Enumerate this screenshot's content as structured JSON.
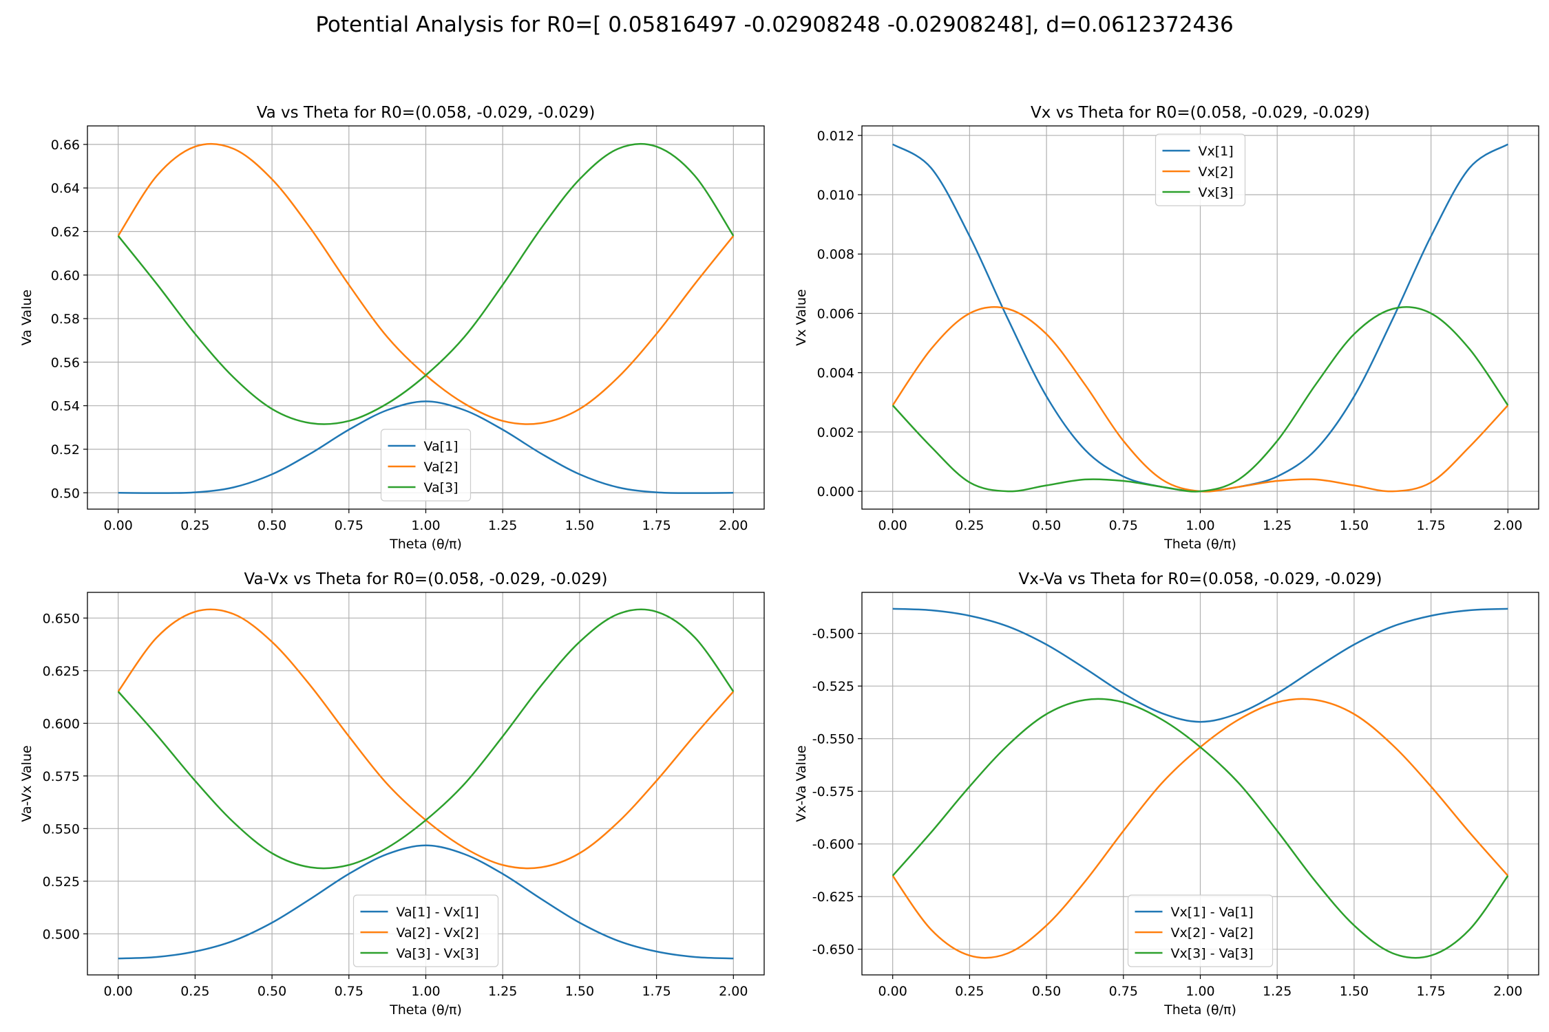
{
  "suptitle": "Potential Analysis for R0=[ 0.05816497 -0.02908248 -0.02908248], d=0.0612372436",
  "colors": {
    "series1": "#1f77b4",
    "series2": "#ff7f0e",
    "series3": "#2ca02c",
    "grid": "#b0b0b0"
  },
  "chart_data": [
    {
      "type": "line",
      "title": "Va vs Theta for R0=(0.058, -0.029, -0.029)",
      "xlabel": "Theta (θ/π)",
      "ylabel": "Va Value",
      "xlim": [
        -0.1,
        2.1
      ],
      "ylim": [
        0.4925,
        0.6685
      ],
      "xticks": [
        "0.00",
        "0.25",
        "0.50",
        "0.75",
        "1.00",
        "1.25",
        "1.50",
        "1.75",
        "2.00"
      ],
      "yticks": [
        "0.50",
        "0.52",
        "0.54",
        "0.56",
        "0.58",
        "0.60",
        "0.62",
        "0.64",
        "0.66"
      ],
      "grid": true,
      "legend": "lower center",
      "x": [
        0.0,
        0.125,
        0.25,
        0.375,
        0.5,
        0.625,
        0.75,
        0.875,
        1.0,
        1.125,
        1.25,
        1.375,
        1.5,
        1.625,
        1.75,
        1.875,
        2.0
      ],
      "series": [
        {
          "name": "Va[1]",
          "values": [
            0.5,
            0.4999,
            0.5002,
            0.5025,
            0.5085,
            0.518,
            0.529,
            0.538,
            0.542,
            0.538,
            0.529,
            0.518,
            0.5085,
            0.5025,
            0.5002,
            0.4999,
            0.5
          ]
        },
        {
          "name": "Va[2]",
          "values": [
            0.618,
            0.6455,
            0.659,
            0.658,
            0.644,
            0.6215,
            0.5955,
            0.5715,
            0.554,
            0.541,
            0.533,
            0.532,
            0.5385,
            0.553,
            0.573,
            0.596,
            0.618
          ]
        },
        {
          "name": "Va[3]",
          "values": [
            0.618,
            0.596,
            0.573,
            0.553,
            0.5385,
            0.532,
            0.533,
            0.541,
            0.554,
            0.5715,
            0.5955,
            0.6215,
            0.644,
            0.658,
            0.659,
            0.6455,
            0.618
          ]
        }
      ]
    },
    {
      "type": "line",
      "title": "Vx vs Theta for R0=(0.058, -0.029, -0.029)",
      "xlabel": "Theta (θ/π)",
      "ylabel": "Vx Value",
      "xlim": [
        -0.1,
        2.1
      ],
      "ylim": [
        -0.0006,
        0.01232
      ],
      "xticks": [
        "0.00",
        "0.25",
        "0.50",
        "0.75",
        "1.00",
        "1.25",
        "1.50",
        "1.75",
        "2.00"
      ],
      "yticks": [
        "0.000",
        "0.002",
        "0.004",
        "0.006",
        "0.008",
        "0.010",
        "0.012"
      ],
      "grid": true,
      "legend": "upper center",
      "x": [
        0.0,
        0.125,
        0.25,
        0.375,
        0.5,
        0.625,
        0.75,
        0.875,
        1.0,
        1.125,
        1.25,
        1.375,
        1.5,
        1.625,
        1.75,
        1.875,
        2.0
      ],
      "series": [
        {
          "name": "Vx[1]",
          "values": [
            0.0117,
            0.0109,
            0.0086,
            0.0058,
            0.0032,
            0.0014,
            0.0005,
            0.00015,
            0.0,
            0.00015,
            0.0005,
            0.0014,
            0.0032,
            0.0058,
            0.0086,
            0.0109,
            0.0117
          ]
        },
        {
          "name": "Vx[2]",
          "values": [
            0.0029,
            0.0048,
            0.006,
            0.00615,
            0.0053,
            0.0036,
            0.0017,
            0.0004,
            0.0,
            0.00015,
            0.00035,
            0.0004,
            0.0002,
            0.0,
            0.0003,
            0.0015,
            0.0029
          ]
        },
        {
          "name": "Vx[3]",
          "values": [
            0.0029,
            0.0015,
            0.0003,
            0.0,
            0.0002,
            0.0004,
            0.00035,
            0.00015,
            0.0,
            0.0004,
            0.0017,
            0.0036,
            0.0053,
            0.00615,
            0.006,
            0.0048,
            0.0029
          ]
        }
      ]
    },
    {
      "type": "line",
      "title": "Va-Vx vs Theta for R0=(0.058, -0.029, -0.029)",
      "xlabel": "Theta (θ/π)",
      "ylabel": "Va-Vx Value",
      "xlim": [
        -0.1,
        2.1
      ],
      "ylim": [
        0.4805,
        0.6622
      ],
      "xticks": [
        "0.00",
        "0.25",
        "0.50",
        "0.75",
        "1.00",
        "1.25",
        "1.50",
        "1.75",
        "2.00"
      ],
      "yticks": [
        "0.500",
        "0.525",
        "0.550",
        "0.575",
        "0.600",
        "0.625",
        "0.650"
      ],
      "grid": true,
      "legend": "lower center",
      "x": [
        0.0,
        0.125,
        0.25,
        0.375,
        0.5,
        0.625,
        0.75,
        0.875,
        1.0,
        1.125,
        1.25,
        1.375,
        1.5,
        1.625,
        1.75,
        1.875,
        2.0
      ],
      "series": [
        {
          "name": "Va[1] - Vx[1]",
          "values": [
            0.4883,
            0.489,
            0.4916,
            0.4967,
            0.5053,
            0.5166,
            0.5285,
            0.5379,
            0.542,
            0.5379,
            0.5285,
            0.5166,
            0.5053,
            0.4967,
            0.4916,
            0.489,
            0.4883
          ]
        },
        {
          "name": "Va[2] - Vx[2]",
          "values": [
            0.6151,
            0.6407,
            0.653,
            0.6519,
            0.6387,
            0.6179,
            0.5938,
            0.5711,
            0.554,
            0.5409,
            0.5327,
            0.5316,
            0.5383,
            0.553,
            0.5727,
            0.5945,
            0.6151
          ]
        },
        {
          "name": "Va[3] - Vx[3]",
          "values": [
            0.6151,
            0.5945,
            0.5727,
            0.553,
            0.5383,
            0.5316,
            0.5327,
            0.5409,
            0.554,
            0.5711,
            0.5938,
            0.6179,
            0.6387,
            0.6519,
            0.653,
            0.6407,
            0.6151
          ]
        }
      ]
    },
    {
      "type": "line",
      "title": "Vx-Va vs Theta for R0=(0.058, -0.029, -0.029)",
      "xlabel": "Theta (θ/π)",
      "ylabel": "Vx-Va Value",
      "xlim": [
        -0.1,
        2.1
      ],
      "ylim": [
        -0.6622,
        -0.4805
      ],
      "xticks": [
        "0.00",
        "0.25",
        "0.50",
        "0.75",
        "1.00",
        "1.25",
        "1.50",
        "1.75",
        "2.00"
      ],
      "yticks": [
        "-0.500",
        "-0.525",
        "-0.550",
        "-0.575",
        "-0.600",
        "-0.625",
        "-0.650"
      ],
      "grid": true,
      "legend": "lower center",
      "x": [
        0.0,
        0.125,
        0.25,
        0.375,
        0.5,
        0.625,
        0.75,
        0.875,
        1.0,
        1.125,
        1.25,
        1.375,
        1.5,
        1.625,
        1.75,
        1.875,
        2.0
      ],
      "series": [
        {
          "name": "Vx[1] - Va[1]",
          "values": [
            -0.4883,
            -0.489,
            -0.4916,
            -0.4967,
            -0.5053,
            -0.5166,
            -0.5285,
            -0.5379,
            -0.542,
            -0.5379,
            -0.5285,
            -0.5166,
            -0.5053,
            -0.4967,
            -0.4916,
            -0.489,
            -0.4883
          ]
        },
        {
          "name": "Vx[2] - Va[2]",
          "values": [
            -0.6151,
            -0.6407,
            -0.653,
            -0.6519,
            -0.6387,
            -0.6179,
            -0.5938,
            -0.5711,
            -0.554,
            -0.5409,
            -0.5327,
            -0.5316,
            -0.5383,
            -0.553,
            -0.5727,
            -0.5945,
            -0.6151
          ]
        },
        {
          "name": "Vx[3] - Va[3]",
          "values": [
            -0.6151,
            -0.5945,
            -0.5727,
            -0.553,
            -0.5383,
            -0.5316,
            -0.5327,
            -0.5409,
            -0.554,
            -0.5711,
            -0.5938,
            -0.6179,
            -0.6387,
            -0.6519,
            -0.653,
            -0.6407,
            -0.6151
          ]
        }
      ]
    }
  ]
}
